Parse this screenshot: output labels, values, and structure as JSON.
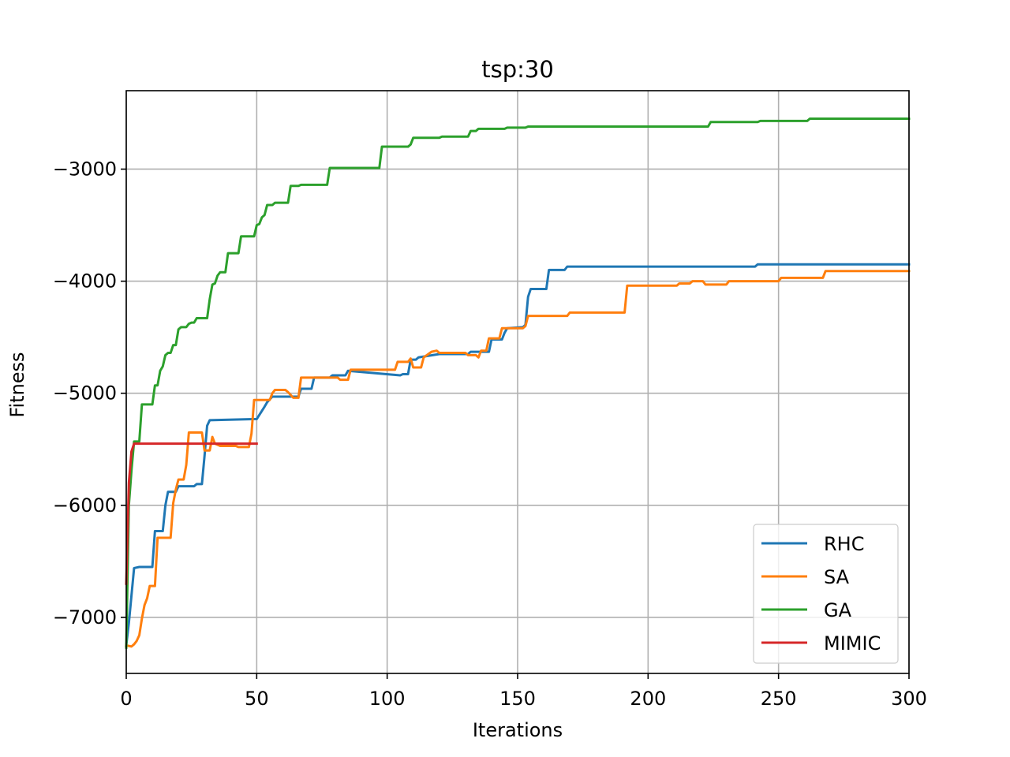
{
  "chart_data": {
    "type": "line",
    "title": "tsp:30",
    "xlabel": "Iterations",
    "ylabel": "Fitness",
    "xlim": [
      0,
      300
    ],
    "ylim": [
      -7500,
      -2300
    ],
    "xticks": [
      0,
      50,
      100,
      150,
      200,
      250,
      300
    ],
    "yticks": [
      -7000,
      -6000,
      -5000,
      -4000,
      -3000
    ],
    "ytick_labels": [
      "−7000",
      "−6000",
      "−5000",
      "−4000",
      "−3000"
    ],
    "grid": true,
    "legend_position": "bottom-right",
    "series": [
      {
        "name": "RHC",
        "color": "#1f77b4",
        "points": [
          [
            0,
            -7250
          ],
          [
            1,
            -7050
          ],
          [
            3,
            -6560
          ],
          [
            5,
            -6550
          ],
          [
            10,
            -6550
          ],
          [
            11,
            -6230
          ],
          [
            14,
            -6230
          ],
          [
            15,
            -6000
          ],
          [
            16,
            -5880
          ],
          [
            19,
            -5880
          ],
          [
            20,
            -5830
          ],
          [
            26,
            -5830
          ],
          [
            27,
            -5810
          ],
          [
            29,
            -5810
          ],
          [
            30,
            -5560
          ],
          [
            31,
            -5290
          ],
          [
            32,
            -5240
          ],
          [
            50,
            -5230
          ],
          [
            53,
            -5120
          ],
          [
            54,
            -5080
          ],
          [
            56,
            -5030
          ],
          [
            66,
            -5030
          ],
          [
            67,
            -4960
          ],
          [
            71,
            -4960
          ],
          [
            72,
            -4860
          ],
          [
            78,
            -4860
          ],
          [
            79,
            -4840
          ],
          [
            84,
            -4840
          ],
          [
            85,
            -4800
          ],
          [
            105,
            -4840
          ],
          [
            106,
            -4830
          ],
          [
            108,
            -4830
          ],
          [
            109,
            -4700
          ],
          [
            111,
            -4700
          ],
          [
            112,
            -4680
          ],
          [
            120,
            -4650
          ],
          [
            131,
            -4650
          ],
          [
            132,
            -4630
          ],
          [
            139,
            -4630
          ],
          [
            140,
            -4520
          ],
          [
            144,
            -4520
          ],
          [
            145,
            -4460
          ],
          [
            146,
            -4420
          ],
          [
            152,
            -4410
          ],
          [
            153,
            -4390
          ],
          [
            154,
            -4140
          ],
          [
            155,
            -4070
          ],
          [
            161,
            -4070
          ],
          [
            162,
            -3900
          ],
          [
            168,
            -3900
          ],
          [
            169,
            -3870
          ],
          [
            241,
            -3870
          ],
          [
            242,
            -3850
          ],
          [
            300,
            -3850
          ]
        ]
      },
      {
        "name": "SA",
        "color": "#ff7f0e",
        "points": [
          [
            0,
            -7250
          ],
          [
            2,
            -7260
          ],
          [
            3,
            -7240
          ],
          [
            4,
            -7210
          ],
          [
            5,
            -7160
          ],
          [
            6,
            -7010
          ],
          [
            7,
            -6890
          ],
          [
            8,
            -6830
          ],
          [
            9,
            -6720
          ],
          [
            11,
            -6720
          ],
          [
            12,
            -6290
          ],
          [
            17,
            -6290
          ],
          [
            18,
            -5980
          ],
          [
            19,
            -5860
          ],
          [
            20,
            -5770
          ],
          [
            22,
            -5770
          ],
          [
            23,
            -5640
          ],
          [
            24,
            -5350
          ],
          [
            29,
            -5350
          ],
          [
            30,
            -5510
          ],
          [
            32,
            -5510
          ],
          [
            33,
            -5390
          ],
          [
            34,
            -5450
          ],
          [
            36,
            -5470
          ],
          [
            42,
            -5470
          ],
          [
            43,
            -5480
          ],
          [
            47,
            -5480
          ],
          [
            48,
            -5360
          ],
          [
            49,
            -5060
          ],
          [
            55,
            -5060
          ],
          [
            56,
            -5000
          ],
          [
            57,
            -4970
          ],
          [
            61,
            -4970
          ],
          [
            62,
            -4990
          ],
          [
            64,
            -5040
          ],
          [
            66,
            -5040
          ],
          [
            67,
            -4860
          ],
          [
            81,
            -4860
          ],
          [
            82,
            -4880
          ],
          [
            85,
            -4880
          ],
          [
            86,
            -4790
          ],
          [
            103,
            -4790
          ],
          [
            104,
            -4720
          ],
          [
            108,
            -4720
          ],
          [
            109,
            -4690
          ],
          [
            110,
            -4770
          ],
          [
            113,
            -4770
          ],
          [
            114,
            -4680
          ],
          [
            117,
            -4630
          ],
          [
            119,
            -4620
          ],
          [
            120,
            -4640
          ],
          [
            130,
            -4640
          ],
          [
            131,
            -4660
          ],
          [
            134,
            -4660
          ],
          [
            135,
            -4680
          ],
          [
            136,
            -4620
          ],
          [
            138,
            -4620
          ],
          [
            139,
            -4510
          ],
          [
            143,
            -4510
          ],
          [
            144,
            -4420
          ],
          [
            152,
            -4420
          ],
          [
            153,
            -4400
          ],
          [
            154,
            -4310
          ],
          [
            169,
            -4310
          ],
          [
            170,
            -4280
          ],
          [
            191,
            -4280
          ],
          [
            192,
            -4040
          ],
          [
            211,
            -4040
          ],
          [
            212,
            -4020
          ],
          [
            216,
            -4020
          ],
          [
            217,
            -4000
          ],
          [
            221,
            -4000
          ],
          [
            222,
            -4030
          ],
          [
            230,
            -4030
          ],
          [
            231,
            -4000
          ],
          [
            250,
            -4000
          ],
          [
            251,
            -3970
          ],
          [
            267,
            -3970
          ],
          [
            268,
            -3910
          ],
          [
            300,
            -3910
          ]
        ]
      },
      {
        "name": "GA",
        "color": "#2ca02c",
        "points": [
          [
            0,
            -7270
          ],
          [
            1,
            -6000
          ],
          [
            2,
            -5690
          ],
          [
            3,
            -5430
          ],
          [
            5,
            -5430
          ],
          [
            6,
            -5100
          ],
          [
            10,
            -5100
          ],
          [
            11,
            -4930
          ],
          [
            12,
            -4930
          ],
          [
            13,
            -4800
          ],
          [
            14,
            -4760
          ],
          [
            15,
            -4660
          ],
          [
            16,
            -4640
          ],
          [
            17,
            -4640
          ],
          [
            18,
            -4570
          ],
          [
            19,
            -4570
          ],
          [
            20,
            -4430
          ],
          [
            21,
            -4410
          ],
          [
            23,
            -4410
          ],
          [
            24,
            -4380
          ],
          [
            25,
            -4370
          ],
          [
            26,
            -4370
          ],
          [
            27,
            -4330
          ],
          [
            31,
            -4330
          ],
          [
            32,
            -4160
          ],
          [
            33,
            -4030
          ],
          [
            34,
            -4020
          ],
          [
            35,
            -3950
          ],
          [
            36,
            -3920
          ],
          [
            38,
            -3920
          ],
          [
            39,
            -3750
          ],
          [
            43,
            -3750
          ],
          [
            44,
            -3600
          ],
          [
            49,
            -3600
          ],
          [
            50,
            -3500
          ],
          [
            51,
            -3490
          ],
          [
            52,
            -3430
          ],
          [
            53,
            -3410
          ],
          [
            54,
            -3320
          ],
          [
            56,
            -3320
          ],
          [
            57,
            -3300
          ],
          [
            62,
            -3300
          ],
          [
            63,
            -3150
          ],
          [
            66,
            -3150
          ],
          [
            67,
            -3140
          ],
          [
            77,
            -3140
          ],
          [
            78,
            -2990
          ],
          [
            97,
            -2990
          ],
          [
            98,
            -2800
          ],
          [
            108,
            -2800
          ],
          [
            109,
            -2780
          ],
          [
            110,
            -2720
          ],
          [
            120,
            -2720
          ],
          [
            121,
            -2710
          ],
          [
            131,
            -2710
          ],
          [
            132,
            -2660
          ],
          [
            134,
            -2660
          ],
          [
            135,
            -2640
          ],
          [
            145,
            -2640
          ],
          [
            146,
            -2630
          ],
          [
            153,
            -2630
          ],
          [
            154,
            -2620
          ],
          [
            223,
            -2620
          ],
          [
            224,
            -2580
          ],
          [
            242,
            -2580
          ],
          [
            243,
            -2570
          ],
          [
            261,
            -2570
          ],
          [
            262,
            -2550
          ],
          [
            300,
            -2550
          ]
        ]
      },
      {
        "name": "MIMIC",
        "color": "#d62728",
        "points": [
          [
            0,
            -6700
          ],
          [
            1,
            -5800
          ],
          [
            2,
            -5520
          ],
          [
            3,
            -5450
          ],
          [
            50,
            -5450
          ]
        ]
      }
    ]
  }
}
